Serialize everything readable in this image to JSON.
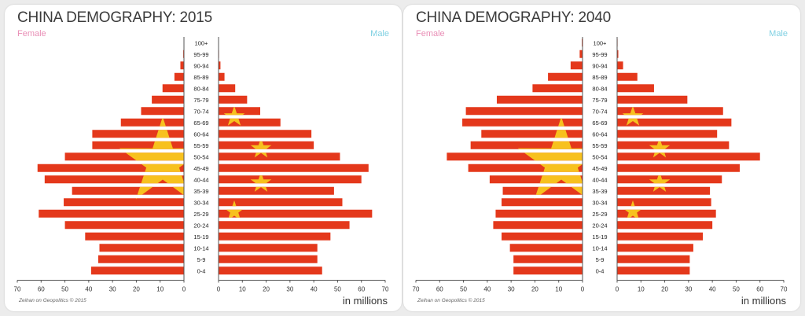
{
  "colors": {
    "bar": "#e4381b",
    "star": "#f7c11e",
    "female": "#e98fb6",
    "male": "#7fd0e2"
  },
  "age_groups": [
    "100+",
    "95-99",
    "90-94",
    "85-89",
    "80-84",
    "75-79",
    "70-74",
    "65-69",
    "60-64",
    "55-59",
    "50-54",
    "45-49",
    "40-44",
    "35-39",
    "30-34",
    "25-29",
    "20-24",
    "15-19",
    "10-14",
    "5-9",
    "0-4"
  ],
  "axis_ticks": [
    "70",
    "60",
    "50",
    "40",
    "30",
    "20",
    "10",
    "0"
  ],
  "units": "in millions",
  "credit": "Zeihan on Geopolitics © 2015",
  "female_label": "Female",
  "male_label": "Male",
  "chart_data": [
    {
      "type": "bar",
      "orientation": "horizontal-population-pyramid",
      "title": "CHINA DEMOGRAPHY: 2015",
      "categories": [
        "100+",
        "95-99",
        "90-94",
        "85-89",
        "80-84",
        "75-79",
        "70-74",
        "65-69",
        "60-64",
        "55-59",
        "50-54",
        "45-49",
        "40-44",
        "35-39",
        "30-34",
        "25-29",
        "20-24",
        "15-19",
        "10-14",
        "5-9",
        "0-4"
      ],
      "series": [
        {
          "name": "Female",
          "values": [
            0.1,
            0.3,
            1.5,
            4,
            9,
            13.5,
            18,
            26.5,
            38.5,
            38.5,
            50,
            61.5,
            58.5,
            47,
            50.5,
            61,
            50,
            41.5,
            35.5,
            36,
            39
          ]
        },
        {
          "name": "Male",
          "values": [
            0,
            0.2,
            0.8,
            2.5,
            7,
            12,
            17.5,
            26,
            39,
            40,
            51,
            63,
            60,
            48.5,
            52,
            64.5,
            55,
            47,
            41.5,
            41.5,
            43.5
          ]
        }
      ],
      "xlim": [
        0,
        70
      ],
      "xlabel": "in millions"
    },
    {
      "type": "bar",
      "orientation": "horizontal-population-pyramid",
      "title": "CHINA DEMOGRAPHY: 2040",
      "categories": [
        "100+",
        "95-99",
        "90-94",
        "85-89",
        "80-84",
        "75-79",
        "70-74",
        "65-69",
        "60-64",
        "55-59",
        "50-54",
        "45-49",
        "40-44",
        "35-39",
        "30-34",
        "25-29",
        "20-24",
        "15-19",
        "10-14",
        "5-9",
        "0-4"
      ],
      "series": [
        {
          "name": "Female",
          "values": [
            0.3,
            1.2,
            5,
            14.5,
            21,
            36,
            49,
            50.5,
            42.5,
            47,
            57,
            48,
            39,
            33.5,
            34,
            36.5,
            37.5,
            34,
            30.5,
            29,
            29
          ]
        },
        {
          "name": "Male",
          "values": [
            0.2,
            0.5,
            2.5,
            8.5,
            15.5,
            29.5,
            44.5,
            48,
            42,
            47,
            60,
            51.5,
            44,
            39,
            39.5,
            41.5,
            40,
            36,
            32,
            30.5,
            30.5
          ]
        }
      ],
      "xlim": [
        0,
        70
      ],
      "xlabel": "in millions"
    }
  ]
}
